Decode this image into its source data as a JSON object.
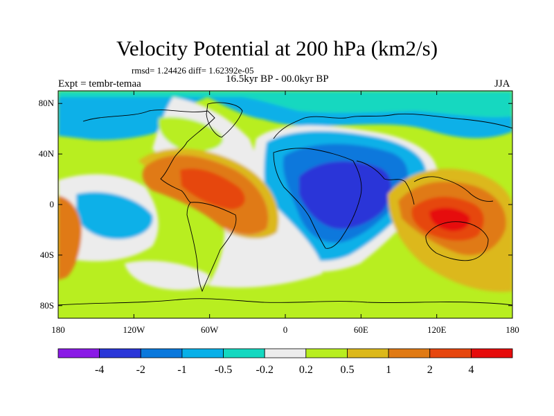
{
  "title": "Velocity Potential at 200 hPa (km2/s)",
  "stats_line": "rmsd= 1.24426 diff= 1.62392e-05",
  "subtitle": "16.5kyr BP - 00.0kyr BP",
  "experiment_label": "Expt = tembr-temaa",
  "season_label": "JJA",
  "map": {
    "projection": "cylindrical equidistant",
    "lon_range": [
      -180,
      180
    ],
    "lat_range": [
      -90,
      90
    ],
    "lat_ticks": [
      "80N",
      "40N",
      "0",
      "40S",
      "80S"
    ],
    "lon_ticks": [
      "180",
      "120W",
      "60W",
      "0",
      "60E",
      "120E",
      "180"
    ],
    "background_color": "#b8ee20"
  },
  "colorbar": {
    "colors": [
      "#8a1ae6",
      "#2a36d8",
      "#0a78dc",
      "#08b0e8",
      "#14d8c0",
      "#ececec",
      "#b8ee20",
      "#dcb81a",
      "#e07a14",
      "#e6460e",
      "#e60c0c"
    ],
    "labels": [
      "-4",
      "-2",
      "-1",
      "-0.5",
      "-0.2",
      "0.2",
      "0.5",
      "1",
      "2",
      "4"
    ]
  }
}
